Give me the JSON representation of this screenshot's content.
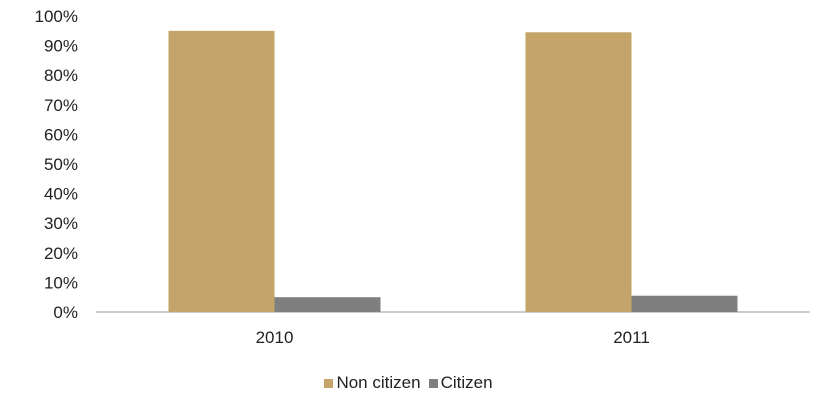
{
  "chart_data": {
    "type": "bar",
    "categories": [
      "2010",
      "2011"
    ],
    "series": [
      {
        "name": "Non citizen",
        "values": [
          95,
          94.5
        ],
        "color": "#c4a46a"
      },
      {
        "name": "Citizen",
        "values": [
          5,
          5.5
        ],
        "color": "#7f7f7f"
      }
    ],
    "ylim": [
      0,
      100
    ],
    "yticks": [
      "0%",
      "10%",
      "20%",
      "30%",
      "40%",
      "50%",
      "60%",
      "70%",
      "80%",
      "90%",
      "100%"
    ],
    "grid": false,
    "legend_position": "bottom"
  }
}
